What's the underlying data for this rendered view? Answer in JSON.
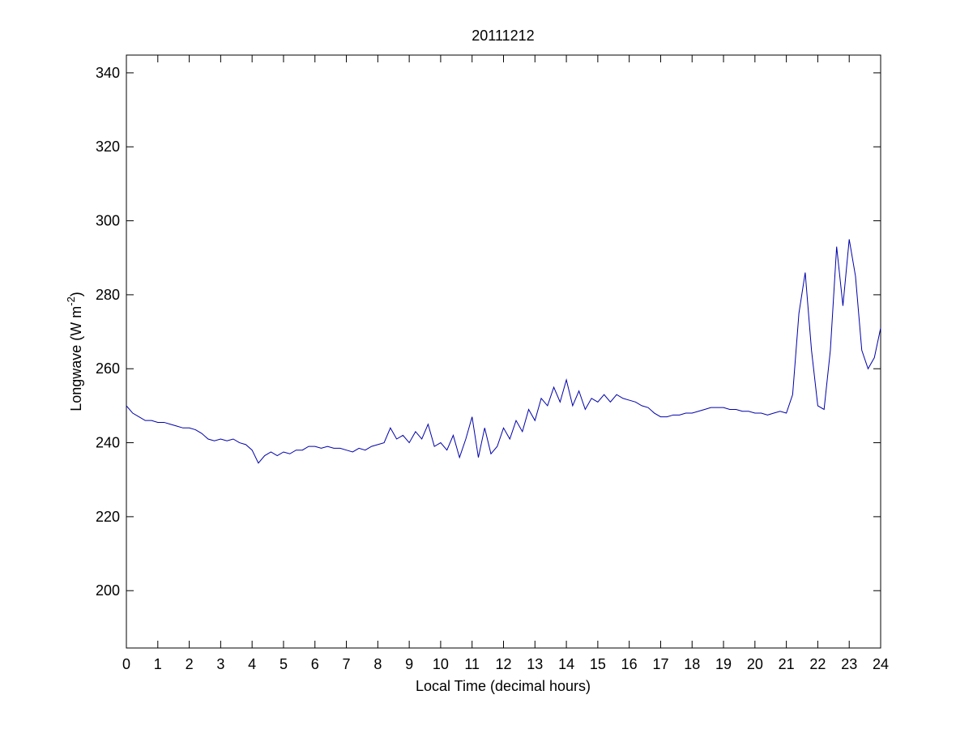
{
  "chart_data": {
    "type": "line",
    "title": "20111212",
    "xlabel": "Local Time (decimal hours)",
    "ylabel": {
      "text": "Longwave (W m",
      "superscript": "-2",
      "suffix": ")"
    },
    "xlim": [
      0,
      24
    ],
    "xticks": [
      0,
      1,
      2,
      3,
      4,
      5,
      6,
      7,
      8,
      9,
      10,
      11,
      12,
      13,
      14,
      15,
      16,
      17,
      18,
      19,
      20,
      21,
      22,
      23,
      24
    ],
    "ylim": [
      184.5,
      344.8
    ],
    "yticks": [
      200,
      220,
      240,
      260,
      280,
      300,
      320,
      340
    ],
    "grid": false,
    "x": [
      0,
      0.2,
      0.4,
      0.6,
      0.8,
      1,
      1.2,
      1.4,
      1.6,
      1.8,
      2,
      2.2,
      2.4,
      2.6,
      2.8,
      3,
      3.2,
      3.4,
      3.6,
      3.8,
      4,
      4.2,
      4.4,
      4.6,
      4.8,
      5,
      5.2,
      5.4,
      5.6,
      5.8,
      6,
      6.2,
      6.4,
      6.6,
      6.8,
      7,
      7.2,
      7.4,
      7.6,
      7.8,
      8,
      8.2,
      8.4,
      8.6,
      8.8,
      9,
      9.2,
      9.4,
      9.6,
      9.8,
      10,
      10.2,
      10.4,
      10.6,
      10.8,
      11,
      11.2,
      11.4,
      11.6,
      11.8,
      12,
      12.2,
      12.4,
      12.6,
      12.8,
      13,
      13.2,
      13.4,
      13.6,
      13.8,
      14,
      14.2,
      14.4,
      14.6,
      14.8,
      15,
      15.2,
      15.4,
      15.6,
      15.8,
      16,
      16.2,
      16.4,
      16.6,
      16.8,
      17,
      17.2,
      17.4,
      17.6,
      17.8,
      18,
      18.2,
      18.4,
      18.6,
      18.8,
      19,
      19.2,
      19.4,
      19.6,
      19.8,
      20,
      20.2,
      20.4,
      20.6,
      20.8,
      21,
      21.2,
      21.4,
      21.6,
      21.8,
      22,
      22.2,
      22.4,
      22.6,
      22.8,
      23,
      23.2,
      23.4,
      23.6,
      23.8,
      24
    ],
    "series": [
      {
        "color": "#0000aa",
        "values": [
          250,
          248,
          247,
          246,
          246,
          245.5,
          245.5,
          245,
          244.5,
          244,
          244,
          243.5,
          242.5,
          241,
          240.5,
          241,
          240.5,
          241,
          240,
          239.5,
          238,
          234.5,
          236.5,
          237.5,
          236.5,
          237.5,
          237,
          238,
          238,
          239,
          239,
          238.5,
          239,
          238.5,
          238.5,
          238,
          237.5,
          238.5,
          238,
          239,
          239.5,
          240,
          244,
          241,
          242,
          240,
          243,
          241,
          245,
          239,
          240,
          238,
          242,
          236,
          241,
          247,
          236,
          244,
          237,
          239,
          244,
          241,
          246,
          243,
          249,
          246,
          252,
          250,
          255,
          251,
          257,
          250,
          254,
          249,
          252,
          251,
          253,
          251,
          253,
          252,
          251.5,
          251,
          250,
          249.5,
          248,
          247,
          247,
          247.5,
          247.5,
          248,
          248,
          248.5,
          249,
          249.5,
          249.5,
          249.5,
          249,
          249,
          248.5,
          248.5,
          248,
          248,
          247.5,
          248,
          248.5,
          248,
          253,
          275,
          286,
          265,
          250,
          249,
          265,
          293,
          277,
          295,
          285,
          265,
          260,
          263,
          271
        ]
      }
    ]
  }
}
